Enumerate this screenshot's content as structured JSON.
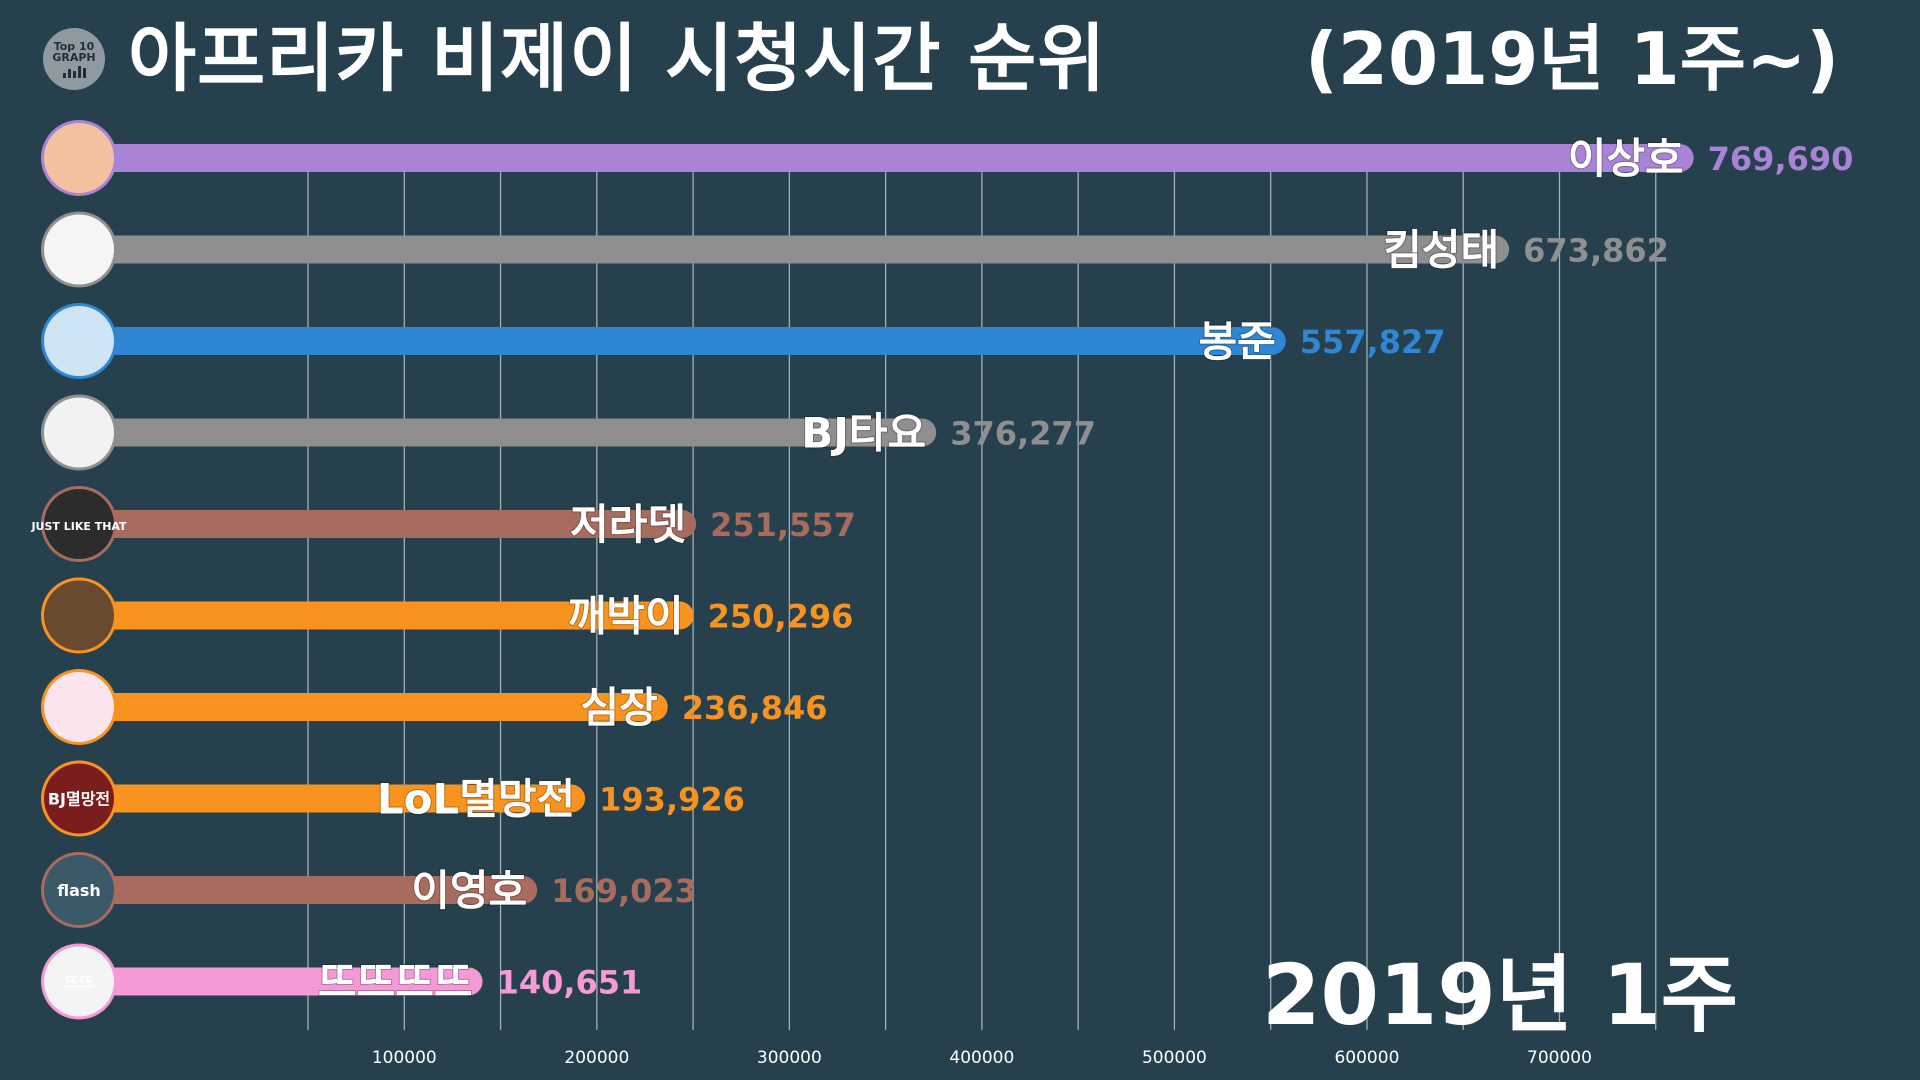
{
  "header": {
    "logo_line1": "Top 10",
    "logo_line2": "GRAPH",
    "title": "아프리카 비제이 시청시간 순위",
    "subtitle": "(2019년 1주~)"
  },
  "date_label": "2019년 1주",
  "chart_data": {
    "type": "bar",
    "orientation": "horizontal",
    "title": "아프리카 비제이 시청시간 순위",
    "subtitle": "(2019년 1주~)",
    "period": "2019년 1주",
    "xlim": [
      -110000,
      800000
    ],
    "x_ticks": [
      100000,
      200000,
      300000,
      400000,
      500000,
      600000,
      700000
    ],
    "x_tick_labels": [
      "100000",
      "200000",
      "300000",
      "400000",
      "500000",
      "600000",
      "700000"
    ],
    "grid": true,
    "categories": [
      "이상호",
      "킴성태",
      "봉준",
      "BJ타요",
      "저라뎃",
      "깨박이",
      "심장",
      "LoL멸망전",
      "이영호",
      "뜨뜨뜨뜨"
    ],
    "values": [
      769690,
      673862,
      557827,
      376277,
      251557,
      250296,
      236846,
      193926,
      169023,
      140651
    ],
    "value_labels": [
      "769,690",
      "673,862",
      "557,827",
      "376,277",
      "251,557",
      "250,296",
      "236,846",
      "193,926",
      "169,023",
      "140,651"
    ],
    "colors": [
      "#a883d6",
      "#8f8f8f",
      "#2f86d2",
      "#8f8f8f",
      "#a86c5e",
      "#f7931e",
      "#f7931e",
      "#f7931e",
      "#a86c5e",
      "#f59ad6"
    ],
    "avatar_text": [
      "",
      "",
      "",
      "",
      "JUST LIKE THAT",
      "",
      "",
      "BJ멸망전",
      "flash",
      "뜨뜨"
    ],
    "avatar_icons": [
      "streamer-avatar",
      "cartoon-boy-avatar",
      "sunglasses-avatar",
      "blank-avatar",
      "just-like-that-logo",
      "face-avatar",
      "white-rabbit-avatar",
      "bj-tournament-logo",
      "flash-logo",
      "ddeu-logo"
    ],
    "avatar_bg": [
      "#f2c2a0",
      "#f5f5f5",
      "#cfe4f5",
      "#f2f2f2",
      "#2c2c2c",
      "#6a4a2e",
      "#fbe4ee",
      "#7a1d1d",
      "#3a5a6a",
      "#f4f4f4"
    ]
  }
}
